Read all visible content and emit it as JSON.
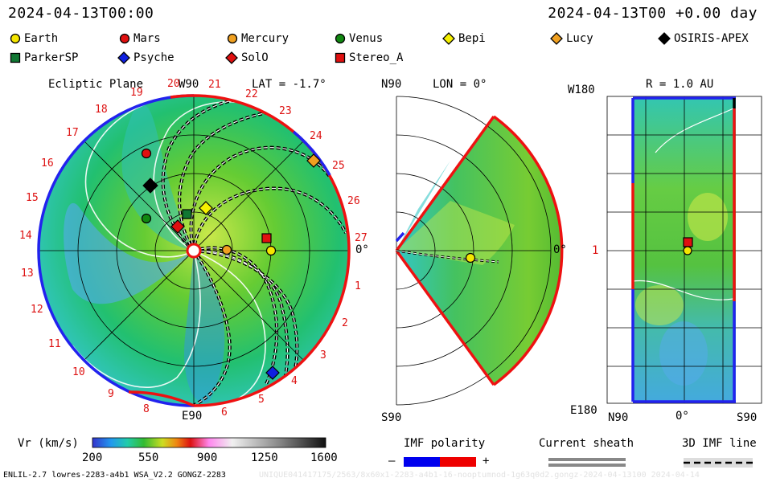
{
  "header": {
    "left_time": "2024-04-13T00:00",
    "right_time": "2024-04-13T00 +0.00 day"
  },
  "legend": [
    {
      "name": "Earth",
      "color": "#f5e600",
      "shape": "circle"
    },
    {
      "name": "Mars",
      "color": "#e01010",
      "shape": "circle"
    },
    {
      "name": "Mercury",
      "color": "#f0a020",
      "shape": "circle"
    },
    {
      "name": "Venus",
      "color": "#118811",
      "shape": "circle"
    },
    {
      "name": "Bepi",
      "color": "#f5f000",
      "shape": "diamond"
    },
    {
      "name": "Lucy",
      "color": "#f0a020",
      "shape": "diamond"
    },
    {
      "name": "OSIRIS-APEX",
      "color": "#000000",
      "shape": "diamond"
    },
    {
      "name": "ParkerSP",
      "color": "#117733",
      "shape": "square"
    },
    {
      "name": "Psyche",
      "color": "#1020e0",
      "shape": "diamond"
    },
    {
      "name": "SolO",
      "color": "#e01010",
      "shape": "diamond"
    },
    {
      "name": "Stereo_A",
      "color": "#e01010",
      "shape": "square"
    }
  ],
  "ecliptic": {
    "title": "Ecliptic Plane",
    "lat_label": "LAT = -1.7°",
    "w90": "W90",
    "e90": "E90",
    "zero": "0°",
    "rotations": [
      "20",
      "21",
      "22",
      "23",
      "24",
      "25",
      "26",
      "27",
      "1",
      "2",
      "3",
      "4",
      "5",
      "6",
      "8",
      "9",
      "10",
      "11",
      "12",
      "13",
      "14",
      "15",
      "16",
      "17",
      "18",
      "19"
    ]
  },
  "meridional": {
    "lon_label": "LON = 0°",
    "n90": "N90",
    "s90": "S90",
    "zero": "0°"
  },
  "map": {
    "r_label": "R = 1.0 AU",
    "w180": "W180",
    "e180": "E180",
    "one": "1",
    "n90": "N90",
    "s90": "S90",
    "zero": "0°"
  },
  "colorbar": {
    "label": "Vr (km/s)",
    "ticks": [
      "200",
      "550",
      "900",
      "1250",
      "1600"
    ]
  },
  "imf": {
    "title": "IMF polarity",
    "minus": "–",
    "plus": "+",
    "neg_color": "#0000ee",
    "pos_color": "#ee0000"
  },
  "sheath": {
    "title": "Current sheath"
  },
  "imf3d": {
    "title": "3D IMF line"
  },
  "footer": {
    "left": "ENLIL-2.7 lowres-2283-a4b1 WSA_V2.2 GONGZ-2283",
    "right": "UNIQUE041417175/2563/8x60x1-2283-a4b1-16-nooptumnod-1g63q0d2.gongz-2024-04-13100 2024-04-14"
  }
}
